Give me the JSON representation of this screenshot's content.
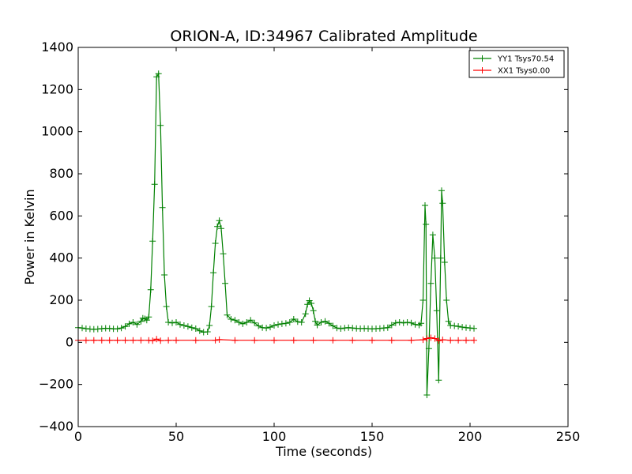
{
  "chart_data": {
    "type": "line",
    "title": "ORION-A, ID:34967 Calibrated Amplitude",
    "xlabel": "Time (seconds)",
    "ylabel": "Power in Kelvin",
    "xlim": [
      0,
      250
    ],
    "ylim": [
      -400,
      1400
    ],
    "xticks": [
      0,
      50,
      100,
      150,
      200,
      250
    ],
    "yticks": [
      -400,
      -200,
      0,
      200,
      400,
      600,
      800,
      1000,
      1200,
      1400
    ],
    "grid": false,
    "legend_position": "top-right",
    "marker": "+",
    "series": [
      {
        "name": "YY1 Tsys70.54",
        "color": "#008000",
        "points": [
          [
            0,
            70
          ],
          [
            2,
            68
          ],
          [
            4,
            65
          ],
          [
            6,
            63
          ],
          [
            8,
            62
          ],
          [
            10,
            63
          ],
          [
            12,
            65
          ],
          [
            14,
            67
          ],
          [
            16,
            66
          ],
          [
            18,
            64
          ],
          [
            20,
            64
          ],
          [
            22,
            68
          ],
          [
            24,
            75
          ],
          [
            26,
            88
          ],
          [
            28,
            95
          ],
          [
            30,
            85
          ],
          [
            32,
            100
          ],
          [
            33,
            115
          ],
          [
            34,
            112
          ],
          [
            35,
            105
          ],
          [
            36,
            120
          ],
          [
            37,
            250
          ],
          [
            38,
            480
          ],
          [
            39,
            750
          ],
          [
            40,
            1260
          ],
          [
            41,
            1275
          ],
          [
            42,
            1030
          ],
          [
            43,
            640
          ],
          [
            44,
            320
          ],
          [
            45,
            170
          ],
          [
            46,
            95
          ],
          [
            48,
            92
          ],
          [
            50,
            95
          ],
          [
            52,
            85
          ],
          [
            54,
            80
          ],
          [
            56,
            75
          ],
          [
            58,
            70
          ],
          [
            60,
            65
          ],
          [
            62,
            55
          ],
          [
            64,
            48
          ],
          [
            66,
            50
          ],
          [
            67,
            80
          ],
          [
            68,
            170
          ],
          [
            69,
            330
          ],
          [
            70,
            470
          ],
          [
            71,
            550
          ],
          [
            72,
            578
          ],
          [
            73,
            540
          ],
          [
            74,
            420
          ],
          [
            75,
            280
          ],
          [
            76,
            130
          ],
          [
            78,
            110
          ],
          [
            80,
            105
          ],
          [
            82,
            95
          ],
          [
            84,
            88
          ],
          [
            86,
            95
          ],
          [
            88,
            105
          ],
          [
            90,
            92
          ],
          [
            92,
            78
          ],
          [
            94,
            70
          ],
          [
            96,
            68
          ],
          [
            98,
            72
          ],
          [
            100,
            80
          ],
          [
            102,
            85
          ],
          [
            104,
            88
          ],
          [
            106,
            90
          ],
          [
            108,
            95
          ],
          [
            110,
            110
          ],
          [
            112,
            98
          ],
          [
            114,
            95
          ],
          [
            116,
            135
          ],
          [
            117,
            180
          ],
          [
            118,
            198
          ],
          [
            119,
            185
          ],
          [
            120,
            150
          ],
          [
            121,
            100
          ],
          [
            122,
            82
          ],
          [
            124,
            95
          ],
          [
            126,
            100
          ],
          [
            128,
            90
          ],
          [
            130,
            78
          ],
          [
            132,
            68
          ],
          [
            134,
            65
          ],
          [
            136,
            68
          ],
          [
            138,
            70
          ],
          [
            140,
            68
          ],
          [
            142,
            66
          ],
          [
            144,
            65
          ],
          [
            146,
            66
          ],
          [
            148,
            65
          ],
          [
            150,
            64
          ],
          [
            152,
            65
          ],
          [
            154,
            66
          ],
          [
            156,
            68
          ],
          [
            158,
            70
          ],
          [
            160,
            82
          ],
          [
            162,
            92
          ],
          [
            164,
            95
          ],
          [
            166,
            92
          ],
          [
            168,
            95
          ],
          [
            170,
            92
          ],
          [
            172,
            85
          ],
          [
            174,
            82
          ],
          [
            175,
            90
          ],
          [
            176,
            200
          ],
          [
            177,
            650
          ],
          [
            177.5,
            560
          ],
          [
            178,
            -250
          ],
          [
            179,
            -30
          ],
          [
            180,
            280
          ],
          [
            181,
            510
          ],
          [
            182,
            400
          ],
          [
            183,
            150
          ],
          [
            184,
            -180
          ],
          [
            185,
            400
          ],
          [
            185.5,
            720
          ],
          [
            186,
            660
          ],
          [
            187,
            380
          ],
          [
            188,
            200
          ],
          [
            189,
            100
          ],
          [
            190,
            80
          ],
          [
            192,
            78
          ],
          [
            194,
            76
          ],
          [
            196,
            72
          ],
          [
            198,
            70
          ],
          [
            200,
            68
          ],
          [
            202,
            66
          ]
        ]
      },
      {
        "name": "XX1 Tsys0.00",
        "color": "#ff0000",
        "points": [
          [
            0,
            10
          ],
          [
            4,
            10
          ],
          [
            8,
            10
          ],
          [
            12,
            10
          ],
          [
            16,
            10
          ],
          [
            20,
            10
          ],
          [
            24,
            10
          ],
          [
            28,
            10
          ],
          [
            32,
            10
          ],
          [
            36,
            10
          ],
          [
            38,
            8
          ],
          [
            40,
            15
          ],
          [
            42,
            8
          ],
          [
            46,
            10
          ],
          [
            50,
            10
          ],
          [
            60,
            10
          ],
          [
            70,
            10
          ],
          [
            72,
            13
          ],
          [
            80,
            10
          ],
          [
            90,
            10
          ],
          [
            100,
            10
          ],
          [
            110,
            10
          ],
          [
            120,
            10
          ],
          [
            130,
            10
          ],
          [
            140,
            10
          ],
          [
            150,
            10
          ],
          [
            160,
            10
          ],
          [
            170,
            10
          ],
          [
            176,
            12
          ],
          [
            178,
            18
          ],
          [
            180,
            22
          ],
          [
            182,
            18
          ],
          [
            184,
            8
          ],
          [
            186,
            12
          ],
          [
            190,
            10
          ],
          [
            194,
            10
          ],
          [
            198,
            10
          ],
          [
            202,
            10
          ]
        ]
      }
    ]
  }
}
